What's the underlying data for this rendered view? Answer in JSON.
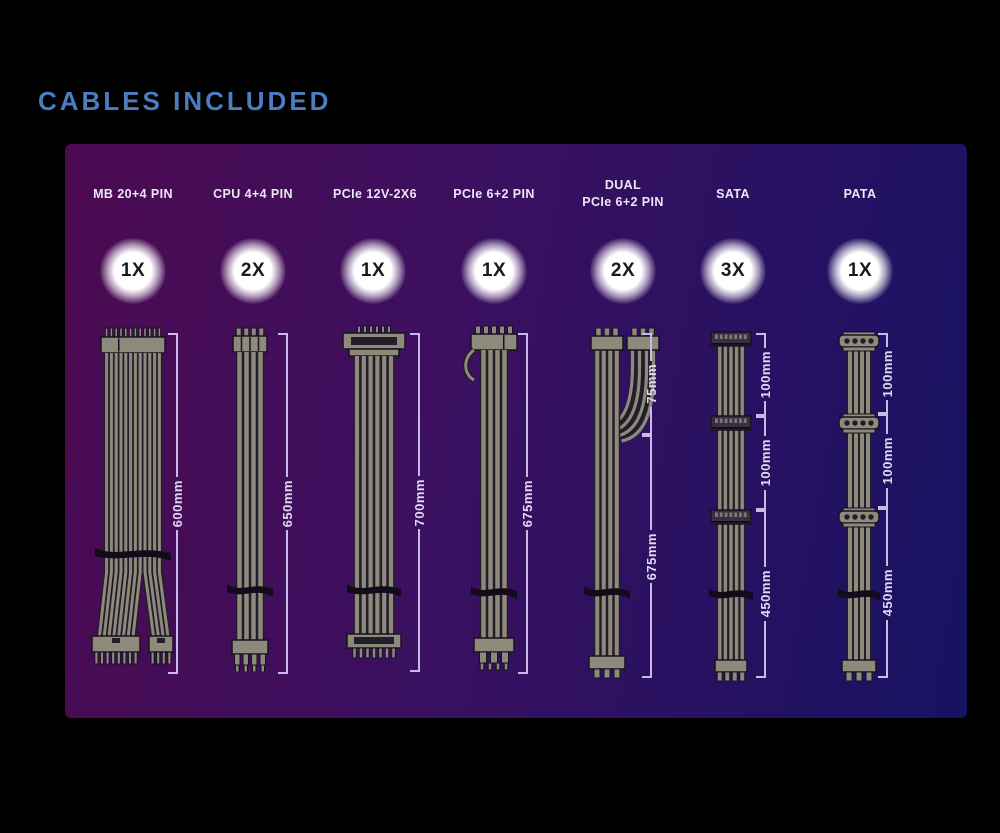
{
  "title": "CABLES INCLUDED",
  "colors": {
    "accent": "#4a7dc2",
    "panel_left": "#4c0a51",
    "panel_mid": "#3a1060",
    "panel_right": "#171263",
    "measure": "#c9b9e6"
  },
  "columns": [
    {
      "label": "MB 20+4 PIN",
      "qty": "1X",
      "measurements": [
        {
          "label": "600mm"
        }
      ]
    },
    {
      "label": "CPU 4+4 PIN",
      "qty": "2X",
      "measurements": [
        {
          "label": "650mm"
        }
      ]
    },
    {
      "label": "PCIe 12V-2X6",
      "qty": "1X",
      "measurements": [
        {
          "label": "700mm"
        }
      ]
    },
    {
      "label": "PCIe 6+2 PIN",
      "qty": "1X",
      "measurements": [
        {
          "label": "675mm"
        }
      ]
    },
    {
      "label": "DUAL",
      "label2": "PCIe 6+2 PIN",
      "qty": "2X",
      "measurements": [
        {
          "label": "75mm"
        },
        {
          "label": "675mm"
        }
      ]
    },
    {
      "label": "SATA",
      "qty": "3X",
      "measurements": [
        {
          "label": "100mm"
        },
        {
          "label": "100mm"
        },
        {
          "label": "450mm"
        }
      ]
    },
    {
      "label": "PATA",
      "qty": "1X",
      "measurements": [
        {
          "label": "100mm"
        },
        {
          "label": "100mm"
        },
        {
          "label": "450mm"
        }
      ]
    }
  ]
}
